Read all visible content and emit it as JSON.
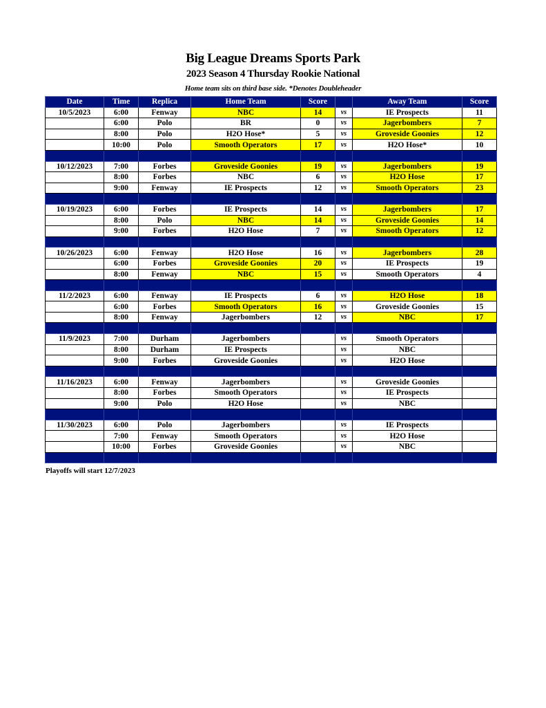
{
  "title": "Big League Dreams Sports Park",
  "subtitle": "2023 Season 4 Thursday Rookie National",
  "note": "Home team sits on third base side.  *Denotes Doubleheader",
  "columns": [
    "Date",
    "Time",
    "Replica",
    "Home Team",
    "Score",
    "",
    "Away Team",
    "Score"
  ],
  "vs_label": "vs",
  "colors": {
    "header": "#00117e",
    "winner_highlight": "#ffff00"
  },
  "groups": [
    {
      "date": "10/5/2023",
      "games": [
        {
          "time": "6:00",
          "field": "Fenway",
          "home": "NBC",
          "home_score": "14",
          "away": "IE Prospects",
          "away_score": "11",
          "highlight": "home"
        },
        {
          "time": "6:00",
          "field": "Polo",
          "home": "BR",
          "home_score": "0",
          "away": "Jagerbombers",
          "away_score": "7",
          "highlight": "away"
        },
        {
          "time": "8:00",
          "field": "Polo",
          "home": "H2O Hose*",
          "home_score": "5",
          "away": "Groveside Goonies",
          "away_score": "12",
          "highlight": "away"
        },
        {
          "time": "10:00",
          "field": "Polo",
          "home": "Smooth Operators",
          "home_score": "17",
          "away": "H2O Hose*",
          "away_score": "10",
          "highlight": "home"
        }
      ]
    },
    {
      "date": "10/12/2023",
      "games": [
        {
          "time": "7:00",
          "field": "Forbes",
          "home": "Groveside Goonies",
          "home_score": "19",
          "away": "Jagerbombers",
          "away_score": "19",
          "highlight": "both"
        },
        {
          "time": "8:00",
          "field": "Forbes",
          "home": "NBC",
          "home_score": "6",
          "away": "H2O Hose",
          "away_score": "17",
          "highlight": "away"
        },
        {
          "time": "9:00",
          "field": "Fenway",
          "home": "IE Prospects",
          "home_score": "12",
          "away": "Smooth Operators",
          "away_score": "23",
          "highlight": "away"
        }
      ]
    },
    {
      "date": "10/19/2023",
      "games": [
        {
          "time": "6:00",
          "field": "Forbes",
          "home": "IE Prospects",
          "home_score": "14",
          "away": "Jagerbombers",
          "away_score": "17",
          "highlight": "away"
        },
        {
          "time": "8:00",
          "field": "Polo",
          "home": "NBC",
          "home_score": "14",
          "away": "Groveside Goonies",
          "away_score": "14",
          "highlight": "both"
        },
        {
          "time": "9:00",
          "field": "Forbes",
          "home": "H2O Hose",
          "home_score": "7",
          "away": "Smooth Operators",
          "away_score": "12",
          "highlight": "away"
        }
      ]
    },
    {
      "date": "10/26/2023",
      "games": [
        {
          "time": "6:00",
          "field": "Fenway",
          "home": "H2O Hose",
          "home_score": "16",
          "away": "Jagerbombers",
          "away_score": "28",
          "highlight": "away"
        },
        {
          "time": "6:00",
          "field": "Forbes",
          "home": "Groveside Goonies",
          "home_score": "20",
          "away": "IE Prospects",
          "away_score": "19",
          "highlight": "home"
        },
        {
          "time": "8:00",
          "field": "Fenway",
          "home": "NBC",
          "home_score": "15",
          "away": "Smooth Operators",
          "away_score": "4",
          "highlight": "home"
        }
      ]
    },
    {
      "date": "11/2/2023",
      "games": [
        {
          "time": "6:00",
          "field": "Fenway",
          "home": "IE Prospects",
          "home_score": "6",
          "away": "H2O Hose",
          "away_score": "18",
          "highlight": "away"
        },
        {
          "time": "6:00",
          "field": "Forbes",
          "home": "Smooth Operators",
          "home_score": "16",
          "away": "Groveside Goonies",
          "away_score": "15",
          "highlight": "home"
        },
        {
          "time": "8:00",
          "field": "Fenway",
          "home": "Jagerbombers",
          "home_score": "12",
          "away": "NBC",
          "away_score": "17",
          "highlight": "away"
        }
      ]
    },
    {
      "date": "11/9/2023",
      "games": [
        {
          "time": "7:00",
          "field": "Durham",
          "home": "Jagerbombers",
          "home_score": "",
          "away": "Smooth Operators",
          "away_score": "",
          "highlight": "none"
        },
        {
          "time": "8:00",
          "field": "Durham",
          "home": "IE Prospects",
          "home_score": "",
          "away": "NBC",
          "away_score": "",
          "highlight": "none"
        },
        {
          "time": "9:00",
          "field": "Forbes",
          "home": "Groveside Goonies",
          "home_score": "",
          "away": "H2O Hose",
          "away_score": "",
          "highlight": "none"
        }
      ]
    },
    {
      "date": "11/16/2023",
      "games": [
        {
          "time": "6:00",
          "field": "Fenway",
          "home": "Jagerbombers",
          "home_score": "",
          "away": "Groveside Goonies",
          "away_score": "",
          "highlight": "none"
        },
        {
          "time": "8:00",
          "field": "Forbes",
          "home": "Smooth Operators",
          "home_score": "",
          "away": "IE Prospects",
          "away_score": "",
          "highlight": "none"
        },
        {
          "time": "9:00",
          "field": "Polo",
          "home": "H2O Hose",
          "home_score": "",
          "away": "NBC",
          "away_score": "",
          "highlight": "none"
        }
      ]
    },
    {
      "date": "11/30/2023",
      "games": [
        {
          "time": "6:00",
          "field": "Polo",
          "home": "Jagerbombers",
          "home_score": "",
          "away": "IE Prospects",
          "away_score": "",
          "highlight": "none"
        },
        {
          "time": "7:00",
          "field": "Fenway",
          "home": "Smooth Operators",
          "home_score": "",
          "away": "H2O Hose",
          "away_score": "",
          "highlight": "none"
        },
        {
          "time": "10:00",
          "field": "Forbes",
          "home": "Groveside Goonies",
          "home_score": "",
          "away": "NBC",
          "away_score": "",
          "highlight": "none"
        }
      ]
    }
  ],
  "footer": "Playoffs will start 12/7/2023"
}
